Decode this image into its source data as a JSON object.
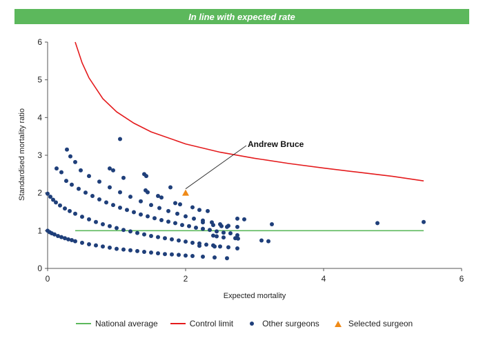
{
  "banner": {
    "text": "In line with expected rate"
  },
  "colors": {
    "banner": "#5cb85c",
    "national_average": "#5cb85c",
    "control_limit": "#e41a1c",
    "other_surgeons": "#1f3f7a",
    "selected_surgeon": "#ef8a17"
  },
  "legend": {
    "national_average": "National average",
    "control_limit": "Control limit",
    "other_surgeons": "Other surgeons",
    "selected_surgeon": "Selected surgeon"
  },
  "chart_data": {
    "type": "scatter",
    "title": "",
    "xlabel": "Expected mortality",
    "ylabel": "Standardised mortality ratio",
    "xlim": [
      0,
      6
    ],
    "ylim": [
      0,
      6
    ],
    "xticks": [
      "0",
      "2",
      "4",
      "6"
    ],
    "yticks": [
      "0",
      "1",
      "2",
      "3",
      "4",
      "5",
      "6"
    ],
    "grid": false,
    "legend_position": "bottom",
    "national_average": {
      "name": "National average",
      "x": [
        0.4,
        5.45
      ],
      "y": [
        1,
        1
      ]
    },
    "control_limit": {
      "name": "Control limit",
      "x": [
        0.4,
        0.5,
        0.6,
        0.8,
        1.0,
        1.25,
        1.5,
        2.0,
        2.5,
        3.0,
        3.5,
        4.0,
        4.5,
        5.0,
        5.45
      ],
      "y": [
        6.0,
        5.45,
        5.05,
        4.5,
        4.15,
        3.85,
        3.62,
        3.3,
        3.08,
        2.92,
        2.78,
        2.66,
        2.55,
        2.44,
        2.32
      ]
    },
    "other_surgeons": {
      "name": "Other surgeons",
      "points": [
        [
          0.0,
          1.0
        ],
        [
          0.03,
          0.96
        ],
        [
          0.06,
          0.93
        ],
        [
          0.1,
          0.9
        ],
        [
          0.15,
          0.86
        ],
        [
          0.2,
          0.83
        ],
        [
          0.25,
          0.8
        ],
        [
          0.3,
          0.77
        ],
        [
          0.35,
          0.75
        ],
        [
          0.4,
          0.72
        ],
        [
          0.5,
          0.68
        ],
        [
          0.6,
          0.64
        ],
        [
          0.7,
          0.61
        ],
        [
          0.8,
          0.58
        ],
        [
          0.9,
          0.55
        ],
        [
          1.0,
          0.52
        ],
        [
          1.1,
          0.5
        ],
        [
          1.2,
          0.48
        ],
        [
          1.3,
          0.46
        ],
        [
          1.4,
          0.44
        ],
        [
          1.5,
          0.42
        ],
        [
          1.6,
          0.4
        ],
        [
          1.7,
          0.38
        ],
        [
          1.8,
          0.37
        ],
        [
          1.9,
          0.36
        ],
        [
          2.0,
          0.34
        ],
        [
          2.1,
          0.33
        ],
        [
          2.25,
          0.31
        ],
        [
          2.42,
          0.29
        ],
        [
          2.6,
          0.27
        ],
        [
          0.0,
          1.98
        ],
        [
          0.04,
          1.9
        ],
        [
          0.08,
          1.82
        ],
        [
          0.12,
          1.75
        ],
        [
          0.18,
          1.67
        ],
        [
          0.25,
          1.59
        ],
        [
          0.32,
          1.52
        ],
        [
          0.4,
          1.45
        ],
        [
          0.5,
          1.37
        ],
        [
          0.6,
          1.3
        ],
        [
          0.7,
          1.23
        ],
        [
          0.8,
          1.17
        ],
        [
          0.9,
          1.12
        ],
        [
          1.0,
          1.07
        ],
        [
          1.1,
          1.02
        ],
        [
          1.2,
          0.98
        ],
        [
          1.3,
          0.94
        ],
        [
          1.4,
          0.9
        ],
        [
          1.5,
          0.86
        ],
        [
          1.6,
          0.83
        ],
        [
          1.7,
          0.8
        ],
        [
          1.8,
          0.77
        ],
        [
          1.9,
          0.74
        ],
        [
          2.0,
          0.71
        ],
        [
          2.1,
          0.68
        ],
        [
          2.2,
          0.66
        ],
        [
          2.3,
          0.63
        ],
        [
          2.4,
          0.61
        ],
        [
          2.5,
          0.58
        ],
        [
          2.62,
          0.56
        ],
        [
          0.27,
          2.32
        ],
        [
          0.35,
          2.22
        ],
        [
          0.45,
          2.11
        ],
        [
          0.55,
          2.01
        ],
        [
          0.65,
          1.92
        ],
        [
          0.75,
          1.83
        ],
        [
          0.85,
          1.75
        ],
        [
          0.95,
          1.68
        ],
        [
          1.05,
          1.61
        ],
        [
          1.15,
          1.55
        ],
        [
          1.25,
          1.49
        ],
        [
          1.35,
          1.43
        ],
        [
          1.45,
          1.38
        ],
        [
          1.55,
          1.33
        ],
        [
          1.65,
          1.28
        ],
        [
          1.75,
          1.24
        ],
        [
          1.85,
          1.2
        ],
        [
          1.95,
          1.15
        ],
        [
          2.05,
          1.12
        ],
        [
          2.15,
          1.08
        ],
        [
          2.25,
          1.05
        ],
        [
          2.35,
          1.02
        ],
        [
          2.45,
          0.98
        ],
        [
          2.55,
          0.95
        ],
        [
          2.65,
          0.93
        ],
        [
          2.75,
          0.88
        ],
        [
          0.48,
          2.6
        ],
        [
          0.6,
          2.45
        ],
        [
          0.75,
          2.3
        ],
        [
          0.9,
          2.15
        ],
        [
          1.05,
          2.02
        ],
        [
          1.2,
          1.9
        ],
        [
          1.35,
          1.78
        ],
        [
          1.5,
          1.68
        ],
        [
          1.62,
          1.6
        ],
        [
          1.75,
          1.52
        ],
        [
          1.88,
          1.45
        ],
        [
          2.0,
          1.38
        ],
        [
          2.12,
          1.32
        ],
        [
          2.25,
          1.27
        ],
        [
          2.38,
          1.22
        ],
        [
          2.5,
          1.17
        ],
        [
          2.62,
          1.13
        ],
        [
          2.75,
          1.1
        ],
        [
          0.28,
          3.15
        ],
        [
          0.33,
          2.97
        ],
        [
          0.4,
          2.82
        ],
        [
          0.13,
          2.65
        ],
        [
          0.2,
          2.55
        ],
        [
          0.9,
          2.65
        ],
        [
          0.95,
          2.6
        ],
        [
          1.1,
          2.4
        ],
        [
          1.4,
          2.5
        ],
        [
          1.43,
          2.45
        ],
        [
          1.05,
          3.43
        ],
        [
          1.42,
          2.07
        ],
        [
          1.45,
          2.02
        ],
        [
          1.6,
          1.92
        ],
        [
          1.65,
          1.88
        ],
        [
          1.78,
          2.15
        ],
        [
          1.85,
          1.73
        ],
        [
          1.92,
          1.7
        ],
        [
          2.1,
          1.62
        ],
        [
          2.2,
          1.55
        ],
        [
          2.32,
          1.52
        ],
        [
          2.25,
          1.22
        ],
        [
          2.4,
          1.15
        ],
        [
          2.52,
          1.12
        ],
        [
          2.6,
          1.1
        ],
        [
          2.75,
          1.32
        ],
        [
          2.85,
          1.3
        ],
        [
          2.4,
          0.87
        ],
        [
          2.45,
          0.85
        ],
        [
          2.55,
          0.82
        ],
        [
          2.72,
          0.8
        ],
        [
          2.76,
          0.79
        ],
        [
          2.75,
          0.53
        ],
        [
          2.2,
          0.6
        ],
        [
          2.42,
          0.58
        ],
        [
          3.1,
          0.74
        ],
        [
          3.2,
          0.72
        ],
        [
          3.25,
          1.17
        ],
        [
          4.78,
          1.2
        ],
        [
          5.45,
          1.23
        ]
      ]
    },
    "selected_surgeon": {
      "name": "Selected surgeon",
      "label": "Andrew Bruce",
      "x": 2.0,
      "y": 2.0
    }
  }
}
